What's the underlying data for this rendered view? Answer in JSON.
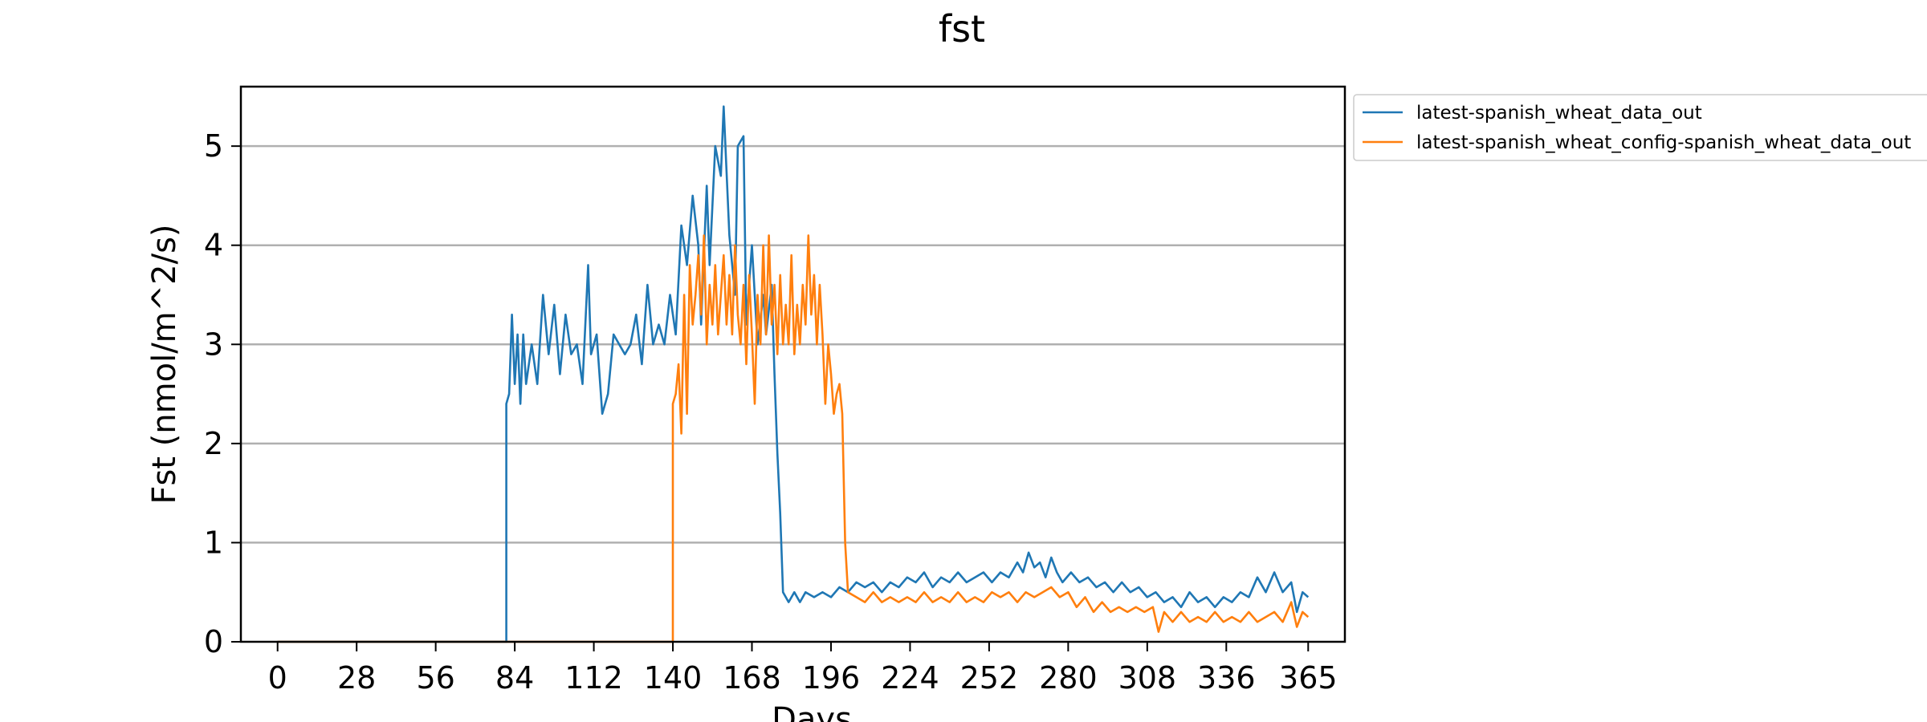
{
  "chart_data": {
    "type": "line",
    "title": "fst",
    "xlabel": "Days",
    "ylabel": "Fst (nmol/m^2/s)",
    "xlim": [
      -13,
      378
    ],
    "ylim": [
      0,
      5.6
    ],
    "x_ticks": [
      0,
      28,
      56,
      84,
      112,
      140,
      168,
      196,
      224,
      252,
      280,
      308,
      336,
      365
    ],
    "y_ticks": [
      0,
      1,
      2,
      3,
      4,
      5
    ],
    "grid": "horizontal",
    "legend_position": "outside-top-right",
    "series": [
      {
        "name": "latest-spanish_wheat_data_out",
        "color": "#1f77b4",
        "points": [
          [
            0,
            0
          ],
          [
            81,
            0
          ],
          [
            81,
            2.4
          ],
          [
            82,
            2.5
          ],
          [
            83,
            3.3
          ],
          [
            84,
            2.6
          ],
          [
            85,
            3.1
          ],
          [
            86,
            2.4
          ],
          [
            87,
            3.1
          ],
          [
            88,
            2.6
          ],
          [
            90,
            3.0
          ],
          [
            92,
            2.6
          ],
          [
            94,
            3.5
          ],
          [
            96,
            2.9
          ],
          [
            98,
            3.4
          ],
          [
            100,
            2.7
          ],
          [
            102,
            3.3
          ],
          [
            104,
            2.9
          ],
          [
            106,
            3.0
          ],
          [
            108,
            2.6
          ],
          [
            110,
            3.8
          ],
          [
            111,
            2.9
          ],
          [
            113,
            3.1
          ],
          [
            115,
            2.3
          ],
          [
            117,
            2.5
          ],
          [
            119,
            3.1
          ],
          [
            121,
            3.0
          ],
          [
            123,
            2.9
          ],
          [
            125,
            3.0
          ],
          [
            127,
            3.3
          ],
          [
            129,
            2.8
          ],
          [
            131,
            3.6
          ],
          [
            133,
            3.0
          ],
          [
            135,
            3.2
          ],
          [
            137,
            3.0
          ],
          [
            139,
            3.5
          ],
          [
            141,
            3.1
          ],
          [
            143,
            4.2
          ],
          [
            145,
            3.8
          ],
          [
            147,
            4.5
          ],
          [
            149,
            4.0
          ],
          [
            150,
            3.2
          ],
          [
            152,
            4.6
          ],
          [
            153,
            3.8
          ],
          [
            155,
            5.0
          ],
          [
            157,
            4.7
          ],
          [
            158,
            5.4
          ],
          [
            160,
            4.1
          ],
          [
            162,
            3.5
          ],
          [
            163,
            5.0
          ],
          [
            165,
            5.1
          ],
          [
            166,
            3.2
          ],
          [
            168,
            4.0
          ],
          [
            170,
            3.0
          ],
          [
            172,
            3.5
          ],
          [
            173,
            3.1
          ],
          [
            175,
            3.6
          ],
          [
            176,
            2.7
          ],
          [
            177,
            1.9
          ],
          [
            178,
            1.3
          ],
          [
            179,
            0.5
          ],
          [
            181,
            0.4
          ],
          [
            183,
            0.5
          ],
          [
            185,
            0.4
          ],
          [
            187,
            0.5
          ],
          [
            190,
            0.45
          ],
          [
            193,
            0.5
          ],
          [
            196,
            0.45
          ],
          [
            199,
            0.55
          ],
          [
            202,
            0.5
          ],
          [
            205,
            0.6
          ],
          [
            208,
            0.55
          ],
          [
            211,
            0.6
          ],
          [
            214,
            0.5
          ],
          [
            217,
            0.6
          ],
          [
            220,
            0.55
          ],
          [
            223,
            0.65
          ],
          [
            226,
            0.6
          ],
          [
            229,
            0.7
          ],
          [
            232,
            0.55
          ],
          [
            235,
            0.65
          ],
          [
            238,
            0.6
          ],
          [
            241,
            0.7
          ],
          [
            244,
            0.6
          ],
          [
            247,
            0.65
          ],
          [
            250,
            0.7
          ],
          [
            253,
            0.6
          ],
          [
            256,
            0.7
          ],
          [
            259,
            0.65
          ],
          [
            262,
            0.8
          ],
          [
            264,
            0.7
          ],
          [
            266,
            0.9
          ],
          [
            268,
            0.75
          ],
          [
            270,
            0.8
          ],
          [
            272,
            0.65
          ],
          [
            274,
            0.85
          ],
          [
            276,
            0.7
          ],
          [
            278,
            0.6
          ],
          [
            281,
            0.7
          ],
          [
            284,
            0.6
          ],
          [
            287,
            0.65
          ],
          [
            290,
            0.55
          ],
          [
            293,
            0.6
          ],
          [
            296,
            0.5
          ],
          [
            299,
            0.6
          ],
          [
            302,
            0.5
          ],
          [
            305,
            0.55
          ],
          [
            308,
            0.45
          ],
          [
            311,
            0.5
          ],
          [
            314,
            0.4
          ],
          [
            317,
            0.45
          ],
          [
            320,
            0.35
          ],
          [
            323,
            0.5
          ],
          [
            326,
            0.4
          ],
          [
            329,
            0.45
          ],
          [
            332,
            0.35
          ],
          [
            335,
            0.45
          ],
          [
            338,
            0.4
          ],
          [
            341,
            0.5
          ],
          [
            344,
            0.45
          ],
          [
            347,
            0.65
          ],
          [
            350,
            0.5
          ],
          [
            353,
            0.7
          ],
          [
            356,
            0.5
          ],
          [
            359,
            0.6
          ],
          [
            361,
            0.3
          ],
          [
            363,
            0.5
          ],
          [
            365,
            0.45
          ]
        ]
      },
      {
        "name": "latest-spanish_wheat_config-spanish_wheat_data_out",
        "color": "#ff7f0e",
        "points": [
          [
            0,
            0
          ],
          [
            139,
            0
          ],
          [
            140,
            0
          ],
          [
            140,
            2.4
          ],
          [
            141,
            2.5
          ],
          [
            142,
            2.8
          ],
          [
            143,
            2.1
          ],
          [
            144,
            3.5
          ],
          [
            145,
            2.3
          ],
          [
            146,
            3.8
          ],
          [
            147,
            3.2
          ],
          [
            148,
            3.5
          ],
          [
            149,
            3.9
          ],
          [
            150,
            3.3
          ],
          [
            151,
            4.1
          ],
          [
            152,
            3.0
          ],
          [
            153,
            3.6
          ],
          [
            154,
            3.2
          ],
          [
            155,
            3.8
          ],
          [
            156,
            3.1
          ],
          [
            157,
            3.5
          ],
          [
            158,
            3.9
          ],
          [
            159,
            3.2
          ],
          [
            160,
            3.7
          ],
          [
            161,
            3.1
          ],
          [
            162,
            4.0
          ],
          [
            163,
            3.3
          ],
          [
            164,
            3.0
          ],
          [
            165,
            3.6
          ],
          [
            166,
            2.8
          ],
          [
            167,
            3.7
          ],
          [
            168,
            3.1
          ],
          [
            169,
            2.4
          ],
          [
            170,
            3.5
          ],
          [
            171,
            3.0
          ],
          [
            172,
            4.0
          ],
          [
            173,
            3.1
          ],
          [
            174,
            4.1
          ],
          [
            175,
            3.2
          ],
          [
            176,
            3.6
          ],
          [
            177,
            2.9
          ],
          [
            178,
            3.7
          ],
          [
            179,
            3.0
          ],
          [
            180,
            3.4
          ],
          [
            181,
            3.0
          ],
          [
            182,
            3.9
          ],
          [
            183,
            2.9
          ],
          [
            184,
            3.4
          ],
          [
            185,
            3.0
          ],
          [
            186,
            3.6
          ],
          [
            187,
            3.2
          ],
          [
            188,
            4.1
          ],
          [
            189,
            3.3
          ],
          [
            190,
            3.7
          ],
          [
            191,
            3.0
          ],
          [
            192,
            3.6
          ],
          [
            193,
            3.1
          ],
          [
            194,
            2.4
          ],
          [
            195,
            3.0
          ],
          [
            196,
            2.7
          ],
          [
            197,
            2.3
          ],
          [
            198,
            2.5
          ],
          [
            199,
            2.6
          ],
          [
            200,
            2.3
          ],
          [
            201,
            1.0
          ],
          [
            202,
            0.5
          ],
          [
            205,
            0.45
          ],
          [
            208,
            0.4
          ],
          [
            211,
            0.5
          ],
          [
            214,
            0.4
          ],
          [
            217,
            0.45
          ],
          [
            220,
            0.4
          ],
          [
            223,
            0.45
          ],
          [
            226,
            0.4
          ],
          [
            229,
            0.5
          ],
          [
            232,
            0.4
          ],
          [
            235,
            0.45
          ],
          [
            238,
            0.4
          ],
          [
            241,
            0.5
          ],
          [
            244,
            0.4
          ],
          [
            247,
            0.45
          ],
          [
            250,
            0.4
          ],
          [
            253,
            0.5
          ],
          [
            256,
            0.45
          ],
          [
            259,
            0.5
          ],
          [
            262,
            0.4
          ],
          [
            265,
            0.5
          ],
          [
            268,
            0.45
          ],
          [
            271,
            0.5
          ],
          [
            274,
            0.55
          ],
          [
            277,
            0.45
          ],
          [
            280,
            0.5
          ],
          [
            283,
            0.35
          ],
          [
            286,
            0.45
          ],
          [
            289,
            0.3
          ],
          [
            292,
            0.4
          ],
          [
            295,
            0.3
          ],
          [
            298,
            0.35
          ],
          [
            301,
            0.3
          ],
          [
            304,
            0.35
          ],
          [
            307,
            0.3
          ],
          [
            310,
            0.35
          ],
          [
            312,
            0.1
          ],
          [
            314,
            0.3
          ],
          [
            317,
            0.2
          ],
          [
            320,
            0.3
          ],
          [
            323,
            0.2
          ],
          [
            326,
            0.25
          ],
          [
            329,
            0.2
          ],
          [
            332,
            0.3
          ],
          [
            335,
            0.2
          ],
          [
            338,
            0.25
          ],
          [
            341,
            0.2
          ],
          [
            344,
            0.3
          ],
          [
            347,
            0.2
          ],
          [
            350,
            0.25
          ],
          [
            353,
            0.3
          ],
          [
            356,
            0.2
          ],
          [
            359,
            0.4
          ],
          [
            361,
            0.15
          ],
          [
            363,
            0.3
          ],
          [
            365,
            0.25
          ]
        ]
      }
    ]
  }
}
